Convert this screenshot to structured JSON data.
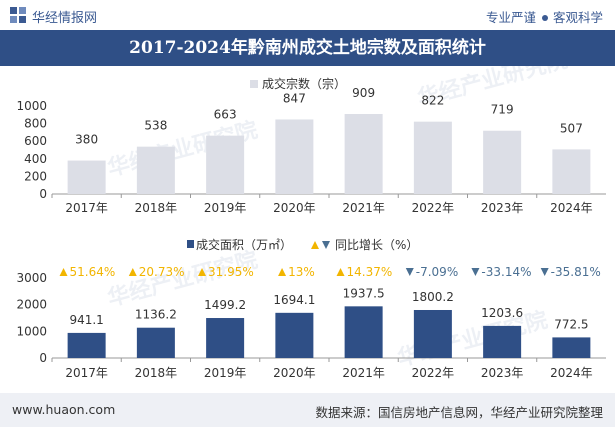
{
  "header": {
    "brand": "华经情报网",
    "slogan_left": "专业严谨",
    "slogan_right": "客观科学",
    "title": "2017-2024年黔南州成交土地宗数及面积统计"
  },
  "footer": {
    "url": "www.huaon.com",
    "source": "数据来源：国信房地产信息网，华经产业研究院整理"
  },
  "watermark": "华经产业研究院",
  "colors": {
    "header_bg": "#2f4f86",
    "count_bar": "#dcdee6",
    "area_bar": "#2f4f86",
    "up": "#f2b500",
    "down": "#4a6f92"
  },
  "chart_data": [
    {
      "type": "bar",
      "title": "",
      "legend": [
        "成交宗数（宗）"
      ],
      "categories": [
        "2017年",
        "2018年",
        "2019年",
        "2020年",
        "2021年",
        "2022年",
        "2023年",
        "2024年"
      ],
      "values": [
        380,
        538,
        663,
        847,
        909,
        822,
        719,
        507
      ],
      "value_labels": [
        "380",
        "538",
        "663",
        "847",
        "909",
        "822",
        "719",
        "507"
      ],
      "ylim": [
        0,
        1000
      ],
      "yticks": [
        "0",
        "200",
        "400",
        "600",
        "800",
        "1000"
      ],
      "xlabel": "",
      "ylabel": ""
    },
    {
      "type": "bar",
      "title": "",
      "legend": [
        "成交面积（万㎡）",
        "同比增长（%）"
      ],
      "categories": [
        "2017年",
        "2018年",
        "2019年",
        "2020年",
        "2021年",
        "2022年",
        "2023年",
        "2024年"
      ],
      "values": [
        941.1,
        1136.2,
        1499.2,
        1694.1,
        1937.5,
        1800.2,
        1203.6,
        772.5
      ],
      "value_labels": [
        "941.1",
        "1136.2",
        "1499.2",
        "1694.1",
        "1937.5",
        "1800.2",
        "1203.6",
        "772.5"
      ],
      "growth": [
        51.64,
        20.73,
        31.95,
        13,
        14.37,
        -7.09,
        -33.14,
        -35.81
      ],
      "growth_labels": [
        "51.64%",
        "20.73%",
        "31.95%",
        "13%",
        "14.37%",
        "-7.09%",
        "-33.14%",
        "-35.81%"
      ],
      "ylim": [
        0,
        3000
      ],
      "yticks": [
        "0",
        "1000",
        "2000",
        "3000"
      ],
      "xlabel": "",
      "ylabel": ""
    }
  ]
}
